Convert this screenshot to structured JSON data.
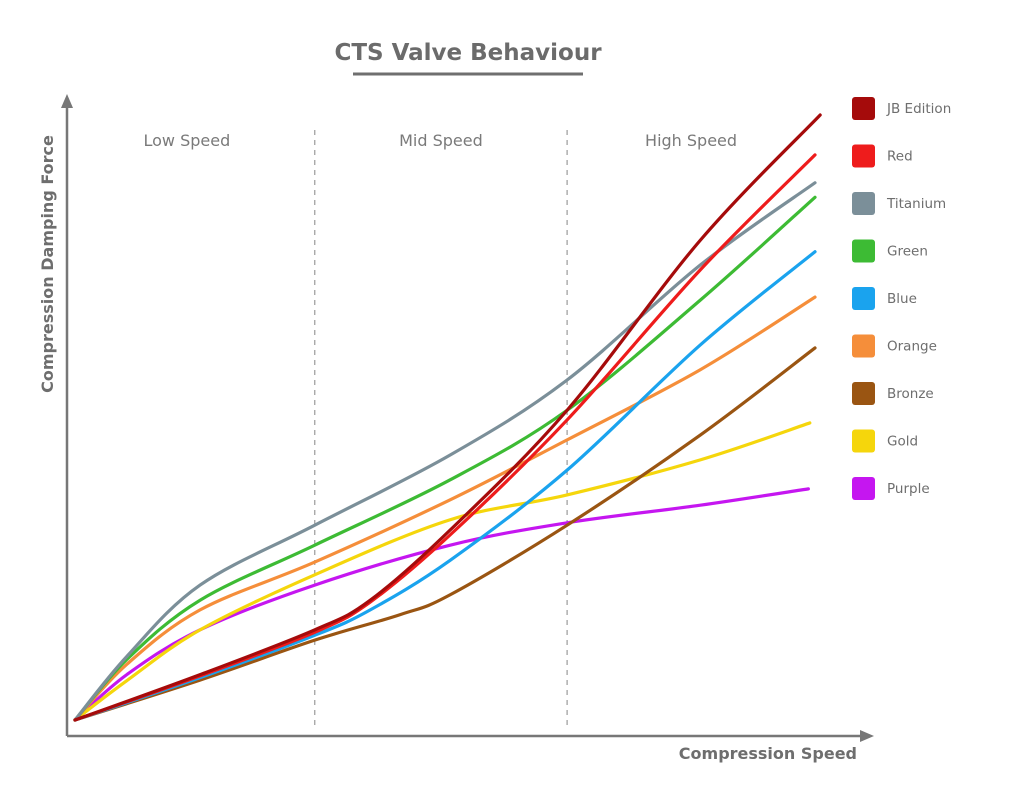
{
  "chart_data": {
    "type": "line",
    "title": "CTS Valve Behaviour",
    "xlabel": "Compression Speed",
    "ylabel": "Compression Damping Force",
    "xlim": [
      0,
      100
    ],
    "ylim": [
      0,
      100
    ],
    "grid": false,
    "ticks": "none",
    "legend_position": "right",
    "regions": [
      {
        "label": "Low Speed",
        "from": 0,
        "to": 32.4
      },
      {
        "label": "Mid Speed",
        "from": 32.4,
        "to": 66.5
      },
      {
        "label": "High Speed",
        "from": 66.5,
        "to": 100
      }
    ],
    "region_dividers": [
      32.4,
      66.5
    ],
    "series": [
      {
        "name": "JB Edition",
        "color": "#a50b0b",
        "points": [
          [
            0,
            0
          ],
          [
            16.9,
            7.5
          ],
          [
            32.4,
            14.9
          ],
          [
            39.9,
            19.8
          ],
          [
            50.7,
            31.4
          ],
          [
            66.5,
            51.2
          ],
          [
            84.5,
            79.3
          ],
          [
            100.7,
            100
          ]
        ]
      },
      {
        "name": "Red",
        "color": "#ee1c1c",
        "points": [
          [
            0,
            0
          ],
          [
            16.9,
            7.3
          ],
          [
            32.4,
            14.5
          ],
          [
            39.9,
            19.5
          ],
          [
            50.7,
            30.6
          ],
          [
            66.5,
            49.6
          ],
          [
            84.5,
            74.4
          ],
          [
            100,
            93.4
          ]
        ]
      },
      {
        "name": "Titanium",
        "color": "#7b8f99",
        "points": [
          [
            0,
            0
          ],
          [
            7,
            10.5
          ],
          [
            16.9,
            22.3
          ],
          [
            32.4,
            32.2
          ],
          [
            50.7,
            43.8
          ],
          [
            66.5,
            56.2
          ],
          [
            84.5,
            75.2
          ],
          [
            100,
            88.8
          ]
        ]
      },
      {
        "name": "Green",
        "color": "#3dbb34",
        "points": [
          [
            0,
            0
          ],
          [
            7,
            10
          ],
          [
            16.9,
            19.8
          ],
          [
            32.4,
            28.9
          ],
          [
            50.7,
            39.7
          ],
          [
            66.5,
            51.2
          ],
          [
            84.5,
            69.4
          ],
          [
            100,
            86.4
          ]
        ]
      },
      {
        "name": "Blue",
        "color": "#1aa3ee",
        "points": [
          [
            0,
            0
          ],
          [
            16.9,
            7
          ],
          [
            32.4,
            14.0
          ],
          [
            39.9,
            18.2
          ],
          [
            50.7,
            26.4
          ],
          [
            66.5,
            41.3
          ],
          [
            84.5,
            62.0
          ],
          [
            100,
            77.4
          ]
        ]
      },
      {
        "name": "Orange",
        "color": "#f58e3a",
        "points": [
          [
            0,
            0
          ],
          [
            7,
            9.2
          ],
          [
            16.9,
            18.2
          ],
          [
            32.4,
            26.1
          ],
          [
            50.7,
            36.4
          ],
          [
            66.5,
            46.3
          ],
          [
            84.5,
            57.9
          ],
          [
            100,
            69.9
          ]
        ]
      },
      {
        "name": "Bronze",
        "color": "#9a5512",
        "points": [
          [
            0,
            0
          ],
          [
            16.9,
            6.6
          ],
          [
            32.4,
            13.2
          ],
          [
            43.9,
            17.4
          ],
          [
            50.7,
            20.7
          ],
          [
            66.5,
            32.2
          ],
          [
            84.5,
            47.1
          ],
          [
            100,
            61.5
          ]
        ]
      },
      {
        "name": "Gold",
        "color": "#f5d60c",
        "points": [
          [
            0,
            0
          ],
          [
            7,
            6.5
          ],
          [
            16.9,
            14.9
          ],
          [
            32.4,
            24.0
          ],
          [
            50.7,
            33.1
          ],
          [
            66.5,
            37.2
          ],
          [
            84.5,
            43.0
          ],
          [
            99.3,
            49.1
          ]
        ]
      },
      {
        "name": "Purple",
        "color": "#c516f0",
        "points": [
          [
            0,
            0
          ],
          [
            7,
            7.5
          ],
          [
            16.9,
            14.9
          ],
          [
            32.4,
            22.3
          ],
          [
            50.7,
            28.9
          ],
          [
            66.5,
            32.6
          ],
          [
            84.5,
            35.5
          ],
          [
            99.1,
            38.2
          ]
        ]
      }
    ]
  },
  "colors": {
    "axis": "#777777",
    "divider": "#9a9a9a",
    "title_underline": "#6f6f6f"
  }
}
